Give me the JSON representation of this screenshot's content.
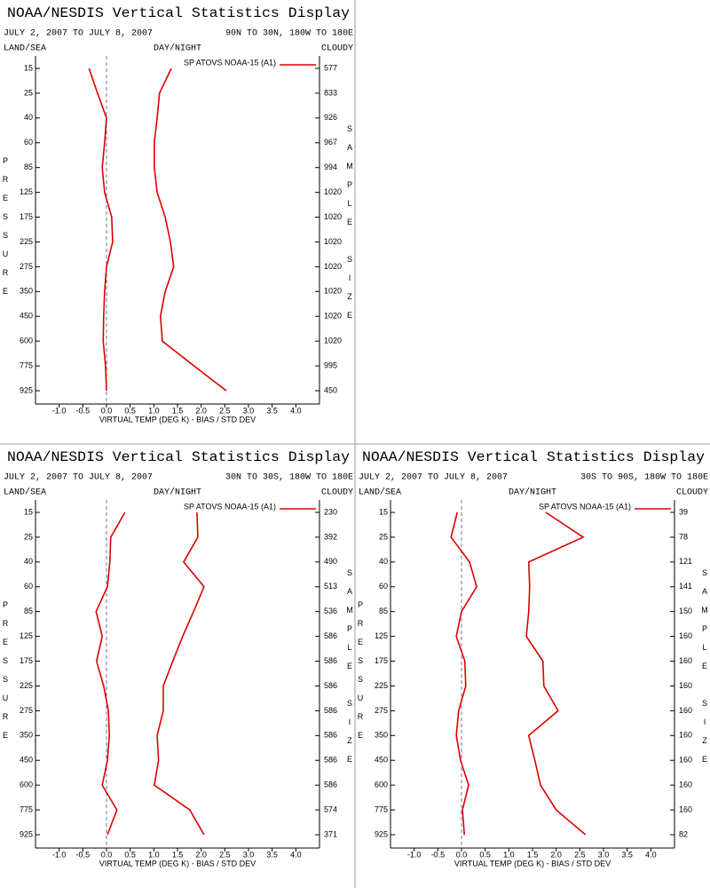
{
  "chart_data": [
    {
      "type": "line",
      "title": "NOAA/NESDIS Vertical Statistics Display",
      "date_range": "JULY 2, 2007 TO JULY 8, 2007",
      "region": "90N TO 30N, 180W TO 180E",
      "land_sea": "LAND/SEA",
      "day_night": "DAY/NIGHT",
      "cloudy": "CLOUDY",
      "y_label": "PRESSURE",
      "y2_label": "SAMPLE SIZE",
      "x_label": "VIRTUAL TEMP (DEG K) - BIAS / STD DEV",
      "categories": [
        15,
        25,
        40,
        60,
        85,
        125,
        175,
        225,
        275,
        350,
        450,
        600,
        775,
        925
      ],
      "sample_sizes": [
        577,
        833,
        926,
        967,
        994,
        1020,
        1020,
        1020,
        1020,
        1020,
        1020,
        1020,
        995,
        450
      ],
      "series": [
        {
          "name": "SP ATOVS NOAA-15 (A1)",
          "color": "#dd0000",
          "values": [
            -0.37,
            -0.19,
            0.0,
            -0.04,
            -0.09,
            -0.04,
            0.11,
            0.13,
            0.0,
            -0.04,
            -0.06,
            -0.07,
            -0.02,
            0.0
          ]
        },
        {
          "color": "#dd0000",
          "values": [
            1.37,
            1.12,
            1.07,
            1.01,
            1.01,
            1.07,
            1.24,
            1.35,
            1.42,
            1.24,
            1.14,
            1.18,
            1.85,
            2.53
          ]
        }
      ],
      "xlim": [
        -1.5,
        4.5
      ],
      "xticks": [
        {
          "value": -1,
          "label": "-1.0"
        },
        -0.5,
        {
          "value": 0,
          "label": "0.0"
        },
        0.5,
        {
          "value": 1,
          "label": "1.0"
        },
        1.5,
        {
          "value": 2,
          "label": "2.0"
        },
        2.5,
        {
          "value": 3,
          "label": "3.0"
        },
        3.5,
        {
          "value": 4,
          "label": "4.0"
        }
      ]
    },
    {
      "type": "line",
      "title": "NOAA/NESDIS Vertical Statistics Display",
      "date_range": "JULY 2, 2007 TO JULY 8, 2007",
      "region": "30N TO 30S, 180W TO 180E",
      "land_sea": "LAND/SEA",
      "day_night": "DAY/NIGHT",
      "cloudy": "CLOUDY",
      "y_label": "PRESSURE",
      "y2_label": "SAMPLE SIZE",
      "x_label": "VIRTUAL TEMP (DEG K) - BIAS / STD DEV",
      "categories": [
        15,
        25,
        40,
        60,
        85,
        125,
        175,
        225,
        275,
        350,
        450,
        600,
        775,
        925
      ],
      "sample_sizes": [
        230,
        392,
        490,
        513,
        536,
        586,
        586,
        586,
        586,
        586,
        586,
        586,
        574,
        371
      ],
      "series": [
        {
          "name": "SP ATOVS NOAA-15 (A1)",
          "color": "#dd0000",
          "values": [
            0.39,
            0.09,
            0.07,
            0.02,
            -0.22,
            -0.09,
            -0.21,
            -0.06,
            0.04,
            0.06,
            0.02,
            -0.09,
            0.22,
            0.02
          ]
        },
        {
          "color": "#dd0000",
          "values": [
            1.91,
            1.93,
            1.63,
            2.06,
            1.84,
            1.61,
            1.4,
            1.2,
            1.2,
            1.07,
            1.1,
            1.01,
            1.76,
            2.06
          ]
        }
      ],
      "xlim": [
        -1.5,
        4.5
      ],
      "xticks": [
        {
          "value": -1,
          "label": "-1.0"
        },
        -0.5,
        {
          "value": 0,
          "label": "0.0"
        },
        0.5,
        {
          "value": 1,
          "label": "1.0"
        },
        1.5,
        {
          "value": 2,
          "label": "2.0"
        },
        2.5,
        {
          "value": 3,
          "label": "3.0"
        },
        3.5,
        {
          "value": 4,
          "label": "4.0"
        }
      ]
    },
    {
      "type": "line",
      "title": "NOAA/NESDIS Vertical Statistics Display",
      "date_range": "JULY 2, 2007 TO JULY 8, 2007",
      "region": "30S TO 90S, 180W TO 180E",
      "land_sea": "LAND/SEA",
      "day_night": "DAY/NIGHT",
      "cloudy": "CLOUDY",
      "y_label": "PRESSURE",
      "y2_label": "SAMPLE SIZE",
      "x_label": "VIRTUAL TEMP (DEG K) - BIAS / STD DEV",
      "categories": [
        15,
        25,
        40,
        60,
        85,
        125,
        175,
        225,
        275,
        350,
        450,
        600,
        775,
        925
      ],
      "sample_sizes": [
        39,
        78,
        121,
        141,
        150,
        160,
        160,
        160,
        160,
        160,
        160,
        160,
        160,
        82
      ],
      "series": [
        {
          "name": "SP ATOVS NOAA-15 (A1)",
          "color": "#dd0000",
          "values": [
            -0.09,
            -0.22,
            0.17,
            0.32,
            0.0,
            -0.11,
            0.07,
            0.09,
            -0.06,
            -0.11,
            -0.02,
            0.15,
            0.02,
            0.06
          ]
        },
        {
          "color": "#dd0000",
          "values": [
            1.78,
            2.57,
            1.42,
            1.44,
            1.42,
            1.37,
            1.72,
            1.74,
            2.04,
            1.42,
            1.55,
            1.67,
            2.0,
            2.62
          ]
        }
      ],
      "xlim": [
        -1.5,
        4.5
      ],
      "xticks": [
        {
          "value": -1,
          "label": "-1.0"
        },
        -0.5,
        {
          "value": 0,
          "label": "0.0"
        },
        0.5,
        {
          "value": 1,
          "label": "1.0"
        },
        1.5,
        {
          "value": 2,
          "label": "2.0"
        },
        2.5,
        {
          "value": 3,
          "label": "3.0"
        },
        3.5,
        {
          "value": 4,
          "label": "4.0"
        }
      ]
    }
  ]
}
